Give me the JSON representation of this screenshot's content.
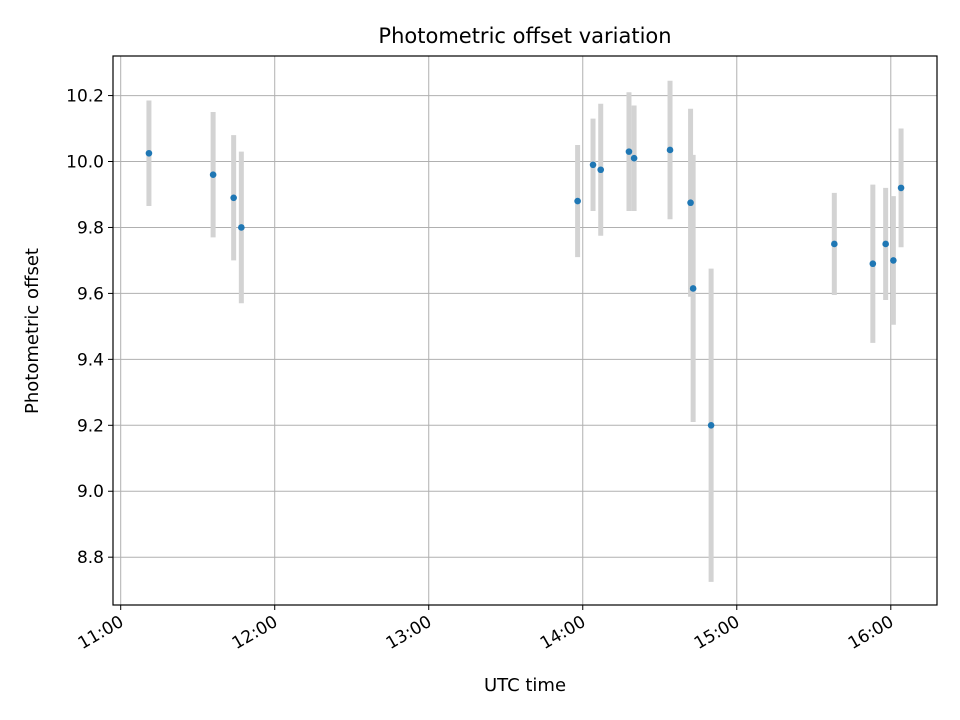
{
  "chart_data": {
    "type": "scatter",
    "title": "Photometric offset variation",
    "xlabel": "UTC time",
    "ylabel": "Photometric offset",
    "xlim": [
      "10:57",
      "16:18"
    ],
    "ylim": [
      8.655,
      10.32
    ],
    "x_ticks": [
      "11:00",
      "12:00",
      "13:00",
      "14:00",
      "15:00",
      "16:00"
    ],
    "y_ticks": [
      8.8,
      9.0,
      9.2,
      9.4,
      9.6,
      9.8,
      10.0,
      10.2
    ],
    "y_tick_labels": [
      "8.8",
      "9.0",
      "9.2",
      "9.4",
      "9.6",
      "9.8",
      "10.0",
      "10.2"
    ],
    "grid": true,
    "marker_color": "#1f77b4",
    "errorbar_color": "#d3d3d3",
    "points": [
      {
        "x": "11:11",
        "y": 10.025,
        "err": 0.16
      },
      {
        "x": "11:36",
        "y": 9.96,
        "err": 0.19
      },
      {
        "x": "11:44",
        "y": 9.89,
        "err": 0.19
      },
      {
        "x": "11:47",
        "y": 9.8,
        "err": 0.23
      },
      {
        "x": "13:58",
        "y": 9.88,
        "err": 0.17
      },
      {
        "x": "14:04",
        "y": 9.99,
        "err": 0.14
      },
      {
        "x": "14:07",
        "y": 9.975,
        "err": 0.2
      },
      {
        "x": "14:18",
        "y": 10.03,
        "err": 0.18
      },
      {
        "x": "14:20",
        "y": 10.01,
        "err": 0.16
      },
      {
        "x": "14:34",
        "y": 10.035,
        "err": 0.21
      },
      {
        "x": "14:42",
        "y": 9.875,
        "err": 0.285
      },
      {
        "x": "14:43",
        "y": 9.615,
        "err": 0.405
      },
      {
        "x": "14:50",
        "y": 9.2,
        "err": 0.475
      },
      {
        "x": "15:38",
        "y": 9.75,
        "err": 0.155
      },
      {
        "x": "15:53",
        "y": 9.69,
        "err": 0.24
      },
      {
        "x": "15:58",
        "y": 9.75,
        "err": 0.17
      },
      {
        "x": "16:01",
        "y": 9.7,
        "err": 0.195
      },
      {
        "x": "16:04",
        "y": 9.92,
        "err": 0.18
      }
    ]
  }
}
